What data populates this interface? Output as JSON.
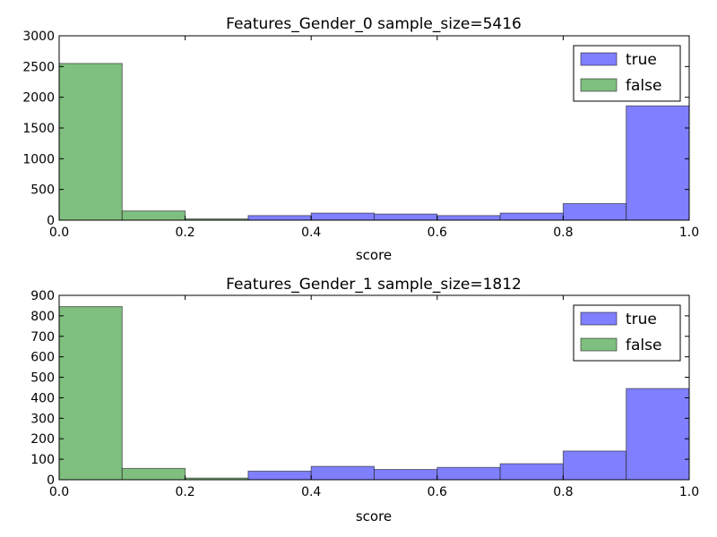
{
  "chart_data": [
    {
      "type": "bar",
      "title": "Features_Gender_0 sample_size=5416",
      "xlabel": "score",
      "ylabel": "",
      "xlim": [
        0.0,
        1.0
      ],
      "ylim": [
        0,
        3000
      ],
      "xticks": [
        "0.0",
        "0.2",
        "0.4",
        "0.6",
        "0.8",
        "1.0"
      ],
      "yticks": [
        "0",
        "500",
        "1000",
        "1500",
        "2000",
        "2500",
        "3000"
      ],
      "bin_edges": [
        0.0,
        0.1,
        0.2,
        0.3,
        0.4,
        0.5,
        0.6,
        0.7,
        0.8,
        0.9,
        1.0
      ],
      "legend_position": "top-right",
      "grid": false,
      "series": [
        {
          "name": "true",
          "color": "#7f7fff",
          "values": [
            0,
            0,
            10,
            75,
            115,
            100,
            75,
            115,
            270,
            1860
          ]
        },
        {
          "name": "false",
          "color": "#7fbf7f",
          "values": [
            2550,
            150,
            20,
            0,
            0,
            0,
            0,
            0,
            0,
            0
          ]
        }
      ]
    },
    {
      "type": "bar",
      "title": "Features_Gender_1 sample_size=1812",
      "xlabel": "score",
      "ylabel": "",
      "xlim": [
        0.0,
        1.0
      ],
      "ylim": [
        0,
        900
      ],
      "xticks": [
        "0.0",
        "0.2",
        "0.4",
        "0.6",
        "0.8",
        "1.0"
      ],
      "yticks": [
        "0",
        "100",
        "200",
        "300",
        "400",
        "500",
        "600",
        "700",
        "800",
        "900"
      ],
      "bin_edges": [
        0.0,
        0.1,
        0.2,
        0.3,
        0.4,
        0.5,
        0.6,
        0.7,
        0.8,
        0.9,
        1.0
      ],
      "legend_position": "top-right",
      "grid": false,
      "series": [
        {
          "name": "true",
          "color": "#7f7fff",
          "values": [
            0,
            0,
            5,
            42,
            65,
            50,
            60,
            78,
            140,
            445
          ]
        },
        {
          "name": "false",
          "color": "#7fbf7f",
          "values": [
            845,
            55,
            8,
            0,
            0,
            0,
            0,
            0,
            0,
            0
          ]
        }
      ]
    }
  ]
}
